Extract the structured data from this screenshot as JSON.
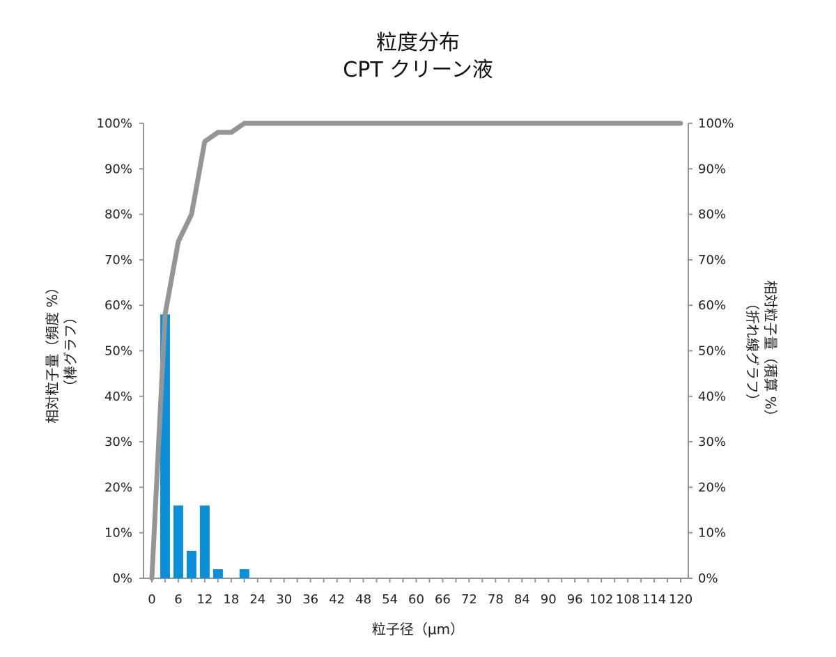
{
  "title_line1": "粒度分布",
  "title_line2": "CPT クリーン液",
  "left_axis_label_line1": "相対粒子量（頻度 %）",
  "left_axis_label_line2": "（棒グラフ）",
  "right_axis_label_line1": "相対粒子量（積算 %）",
  "right_axis_label_line2": "（折れ線グラフ）",
  "x_axis_label": "粒子径（μm）",
  "colors": {
    "bar": "#0a8fd8",
    "line": "#939598",
    "axis": "#939598"
  },
  "chart_data": {
    "type": "bar+line",
    "xlim": [
      0,
      120
    ],
    "ylim": [
      0,
      100
    ],
    "x_ticks": [
      0,
      6,
      12,
      18,
      24,
      30,
      36,
      42,
      48,
      54,
      60,
      66,
      72,
      78,
      84,
      90,
      96,
      102,
      108,
      114,
      120
    ],
    "y_ticks": [
      "0%",
      "10%",
      "20%",
      "30%",
      "40%",
      "50%",
      "60%",
      "70%",
      "80%",
      "90%",
      "100%"
    ],
    "bars": {
      "x": [
        3,
        6,
        9,
        12,
        15,
        21
      ],
      "values": [
        58,
        16,
        6,
        16,
        2,
        2
      ]
    },
    "line": {
      "x": [
        0,
        3,
        6,
        9,
        12,
        15,
        18,
        21,
        120
      ],
      "values": [
        0,
        58,
        74,
        80,
        96,
        98,
        98,
        100,
        100
      ]
    }
  }
}
